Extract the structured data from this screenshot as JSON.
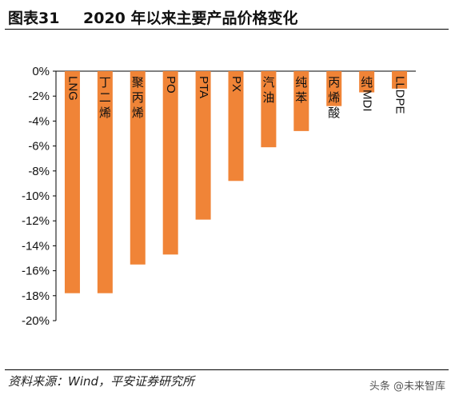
{
  "header": {
    "figure_number": "图表31",
    "title": "2020 年以来主要产品价格变化"
  },
  "chart_data": {
    "type": "bar",
    "title": "2020 年以来主要产品价格变化",
    "categories": [
      "LNG",
      "丁二烯",
      "聚丙烯",
      "PO",
      "PTA",
      "PX",
      "汽油",
      "纯苯",
      "丙烯酸",
      "纯MDI",
      "LLDPE"
    ],
    "values": [
      -17.8,
      -17.8,
      -15.5,
      -14.7,
      -11.9,
      -8.8,
      -6.1,
      -4.8,
      -2.8,
      -1.7,
      -1.4
    ],
    "unit": "%",
    "ylim": [
      -20,
      0
    ],
    "yticks": [
      0,
      -2,
      -4,
      -6,
      -8,
      -10,
      -12,
      -14,
      -16,
      -18,
      -20
    ],
    "ytick_labels": [
      "0%",
      "-2%",
      "-4%",
      "-6%",
      "-8%",
      "-10%",
      "-12%",
      "-14%",
      "-16%",
      "-18%",
      "-20%"
    ],
    "xlabel": "",
    "ylabel": "",
    "grid": false,
    "legend": "none",
    "bar_color": "#F08437"
  },
  "footer": {
    "source": "资料来源：Wind，平安证券研究所",
    "watermark": "头条 @未来智库"
  }
}
